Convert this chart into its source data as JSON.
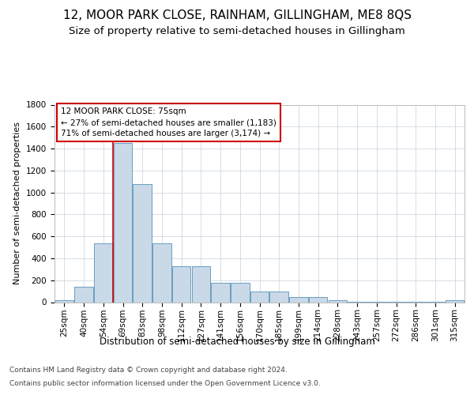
{
  "title": "12, MOOR PARK CLOSE, RAINHAM, GILLINGHAM, ME8 8QS",
  "subtitle": "Size of property relative to semi-detached houses in Gillingham",
  "xlabel": "Distribution of semi-detached houses by size in Gillingham",
  "ylabel": "Number of semi-detached properties",
  "categories": [
    "25sqm",
    "40sqm",
    "54sqm",
    "69sqm",
    "83sqm",
    "98sqm",
    "112sqm",
    "127sqm",
    "141sqm",
    "156sqm",
    "170sqm",
    "185sqm",
    "199sqm",
    "214sqm",
    "228sqm",
    "243sqm",
    "257sqm",
    "272sqm",
    "286sqm",
    "301sqm",
    "315sqm"
  ],
  "values": [
    20,
    140,
    540,
    1450,
    1080,
    540,
    330,
    330,
    175,
    175,
    100,
    100,
    50,
    50,
    20,
    5,
    5,
    5,
    5,
    5,
    15
  ],
  "bar_color": "#c9d9e8",
  "bar_edge_color": "#6a9ec0",
  "vline_x_index": 3,
  "vline_color": "#cc0000",
  "annotation_text": "12 MOOR PARK CLOSE: 75sqm\n← 27% of semi-detached houses are smaller (1,183)\n71% of semi-detached houses are larger (3,174) →",
  "annotation_box_color": "#ffffff",
  "annotation_box_edge": "#cc0000",
  "ylim": [
    0,
    1800
  ],
  "yticks": [
    0,
    200,
    400,
    600,
    800,
    1000,
    1200,
    1400,
    1600,
    1800
  ],
  "background_color": "#ffffff",
  "grid_color": "#d0d8e0",
  "footer_line1": "Contains HM Land Registry data © Crown copyright and database right 2024.",
  "footer_line2": "Contains public sector information licensed under the Open Government Licence v3.0.",
  "title_fontsize": 11,
  "subtitle_fontsize": 9.5,
  "xlabel_fontsize": 8.5,
  "ylabel_fontsize": 8,
  "tick_fontsize": 7.5,
  "annotation_fontsize": 7.5,
  "footer_fontsize": 6.5
}
